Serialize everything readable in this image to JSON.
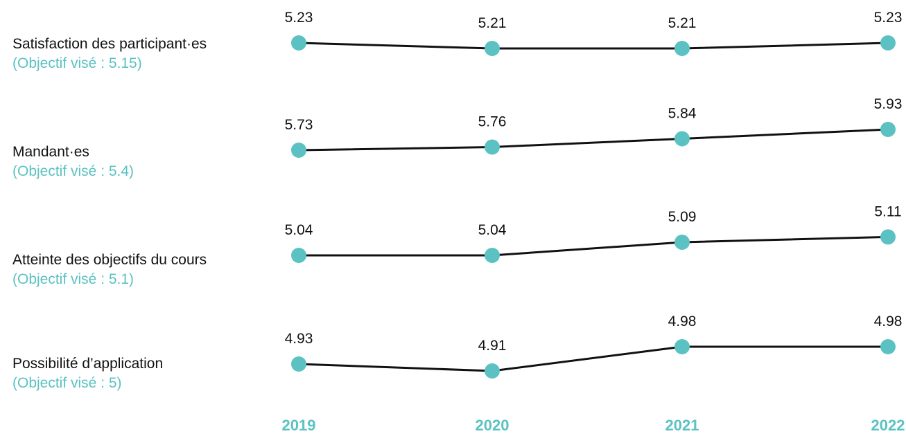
{
  "colors": {
    "accent": "#5bc1c2",
    "line": "#111111",
    "text": "#111111"
  },
  "chart_data": {
    "type": "line",
    "x": [
      "2019",
      "2020",
      "2021",
      "2022"
    ],
    "series": [
      {
        "name": "Satisfaction des participant·es",
        "target_label": "(Objectif visé : 5.15)",
        "values": [
          5.23,
          5.21,
          5.21,
          5.23
        ],
        "value_labels": [
          "5.23",
          "5.21",
          "5.21",
          "5.23"
        ]
      },
      {
        "name": "Mandant·es",
        "target_label": "(Objectif visé : 5.4)",
        "values": [
          5.73,
          5.76,
          5.84,
          5.93
        ],
        "value_labels": [
          "5.73",
          "5.76",
          "5.84",
          "5.93"
        ]
      },
      {
        "name": "Atteinte des objectifs du cours",
        "target_label": "(Objectif visé : 5.1)",
        "values": [
          5.04,
          5.04,
          5.09,
          5.11
        ],
        "value_labels": [
          "5.04",
          "5.04",
          "5.09",
          "5.11"
        ]
      },
      {
        "name": "Possibilité d’application",
        "target_label": "(Objectif visé : 5)",
        "values": [
          4.93,
          4.91,
          4.98,
          4.98
        ],
        "value_labels": [
          "4.93",
          "4.91",
          "4.98",
          "4.98"
        ]
      }
    ]
  }
}
